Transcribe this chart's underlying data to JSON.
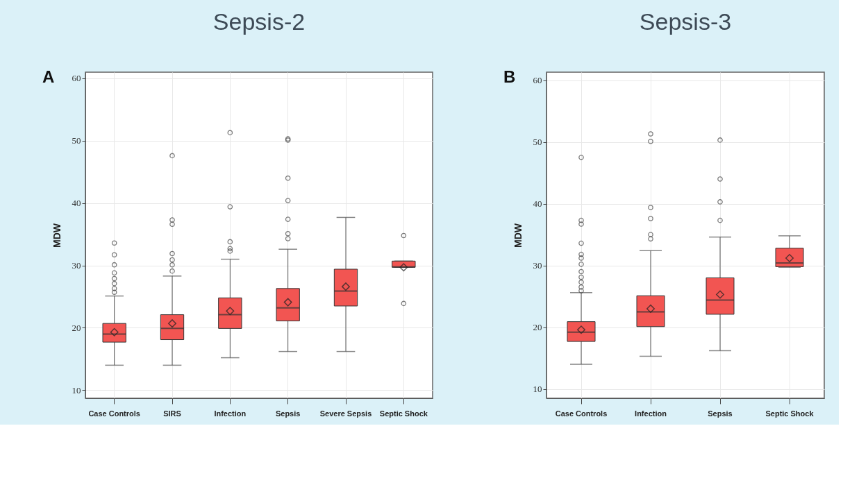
{
  "chart_data": [
    {
      "type": "box",
      "title": "Sepsis-2",
      "annotations": [
        "A"
      ],
      "ylabel": "MDW",
      "categories": [
        "Case Controls",
        "SIRS",
        "Infection",
        "Sepsis",
        "Severe Sepsis",
        "Septic Shock"
      ],
      "ylim": [
        8.7,
        61
      ],
      "yticks": [
        10,
        20,
        30,
        40,
        50,
        60
      ],
      "grid": true,
      "marker": "diamond",
      "color": "#f25552",
      "boxes": [
        {
          "low": 14.0,
          "q1": 17.7,
          "median": 19.0,
          "q3": 20.7,
          "high": 25.1,
          "mean": 19.3,
          "outliers": [
            33.6,
            31.7,
            30.1,
            28.8,
            27.9,
            27.1,
            26.3,
            25.7
          ]
        },
        {
          "low": 14.0,
          "q1": 18.1,
          "median": 19.9,
          "q3": 22.1,
          "high": 28.3,
          "mean": 20.7,
          "outliers": [
            47.6,
            37.3,
            36.6,
            31.9,
            30.9,
            30.1,
            29.1
          ]
        },
        {
          "low": 15.2,
          "q1": 19.9,
          "median": 22.1,
          "q3": 24.8,
          "high": 31.0,
          "mean": 22.7,
          "outliers": [
            51.3,
            39.4,
            33.8,
            32.7,
            32.3
          ]
        },
        {
          "low": 16.2,
          "q1": 21.1,
          "median": 23.2,
          "q3": 26.3,
          "high": 32.6,
          "mean": 24.1,
          "outliers": [
            50.3,
            50.1,
            44.0,
            40.4,
            37.4,
            35.1,
            34.3
          ]
        },
        {
          "low": 16.2,
          "q1": 23.5,
          "median": 25.9,
          "q3": 29.4,
          "high": 37.7,
          "mean": 26.6
        },
        {
          "low": 29.7,
          "q1": 29.7,
          "median": 29.8,
          "q3": 30.7,
          "high": 30.7,
          "mean": 29.7,
          "outliers": [
            34.8,
            23.9
          ]
        }
      ]
    },
    {
      "type": "box",
      "title": "Sepsis-3",
      "annotations": [
        "B"
      ],
      "ylabel": "MDW",
      "categories": [
        "Case Controls",
        "Infection",
        "Sepsis",
        "Septic Shock"
      ],
      "ylim": [
        8.5,
        61.3
      ],
      "yticks": [
        10,
        20,
        30,
        40,
        50,
        60
      ],
      "grid": true,
      "marker": "diamond",
      "color": "#f25552",
      "boxes": [
        {
          "low": 14.0,
          "q1": 17.7,
          "median": 19.2,
          "q3": 20.9,
          "high": 25.6,
          "mean": 19.6,
          "outliers": [
            47.5,
            37.3,
            36.7,
            33.6,
            31.8,
            31.2,
            30.2,
            29.0,
            28.1,
            27.3,
            26.5,
            25.9
          ]
        },
        {
          "low": 15.3,
          "q1": 20.1,
          "median": 22.5,
          "q3": 25.1,
          "high": 32.4,
          "mean": 23.0,
          "outliers": [
            51.3,
            50.1,
            39.4,
            37.6,
            35.0,
            34.3
          ]
        },
        {
          "low": 16.2,
          "q1": 22.1,
          "median": 24.4,
          "q3": 28.0,
          "high": 34.6,
          "mean": 25.3,
          "outliers": [
            50.3,
            44.0,
            40.3,
            37.3
          ]
        },
        {
          "low": 29.7,
          "q1": 29.8,
          "median": 30.4,
          "q3": 32.8,
          "high": 34.8,
          "mean": 31.2
        }
      ]
    }
  ]
}
